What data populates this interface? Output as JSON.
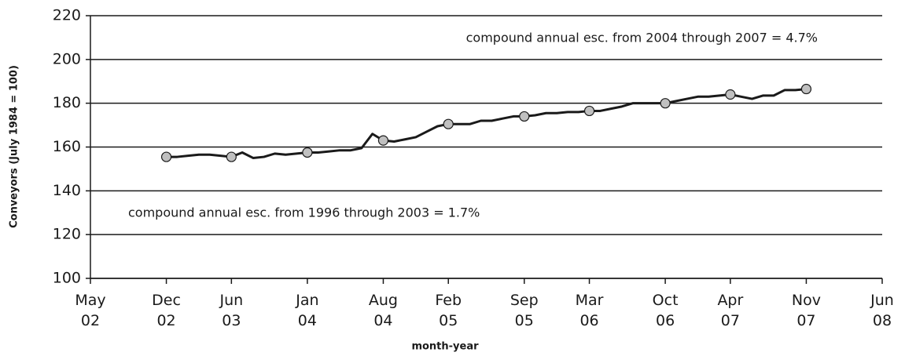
{
  "chart_data": {
    "type": "line",
    "ylabel": "Conveyors (July 1984 = 100)",
    "xlabel": "month-year",
    "annotations": [
      "compound annual esc. from 2004 through 2007 = 4.7%",
      "compound annual esc. from 1996 through 2003 = 1.7%"
    ],
    "x": [
      "2002-12",
      "2003-01",
      "2003-02",
      "2003-03",
      "2003-04",
      "2003-05",
      "2003-06",
      "2003-07",
      "2003-08",
      "2003-09",
      "2003-10",
      "2003-11",
      "2003-12",
      "2004-01",
      "2004-02",
      "2004-03",
      "2004-04",
      "2004-05",
      "2004-06",
      "2004-07",
      "2004-08",
      "2004-09",
      "2004-10",
      "2004-11",
      "2004-12",
      "2005-01",
      "2005-02",
      "2005-03",
      "2005-04",
      "2005-05",
      "2005-06",
      "2005-07",
      "2005-08",
      "2005-09",
      "2005-10",
      "2005-11",
      "2005-12",
      "2006-01",
      "2006-02",
      "2006-03",
      "2006-04",
      "2006-05",
      "2006-06",
      "2006-07",
      "2006-08",
      "2006-09",
      "2006-10",
      "2006-11",
      "2006-12",
      "2007-01",
      "2007-02",
      "2007-03",
      "2007-04",
      "2007-05",
      "2007-06",
      "2007-07",
      "2007-08",
      "2007-09",
      "2007-10",
      "2007-11"
    ],
    "values": [
      155.5,
      155.5,
      156,
      156.5,
      156.5,
      156,
      155.5,
      157.5,
      155,
      155.5,
      157,
      156.5,
      157,
      157.5,
      157.5,
      158,
      158.5,
      158.5,
      159.5,
      166,
      163,
      162.5,
      163.5,
      164.5,
      167,
      169.5,
      170.5,
      170.5,
      170.5,
      172,
      172,
      173,
      174,
      174,
      174.5,
      175.5,
      175.5,
      176,
      176,
      176.5,
      176.5,
      177.5,
      178.5,
      180,
      180,
      180,
      180,
      181,
      182,
      183,
      183,
      183.5,
      184,
      183,
      182,
      183.5,
      183.5,
      186,
      186,
      186.5
    ],
    "color": "#1a1a1a",
    "markers": {
      "color": "#c0c0c0",
      "x": [
        "2002-12",
        "2003-06",
        "2004-01",
        "2004-08",
        "2005-02",
        "2005-09",
        "2006-03",
        "2006-10",
        "2007-04",
        "2007-11"
      ],
      "values": [
        155.5,
        155.5,
        157.5,
        163,
        170.5,
        174,
        176.5,
        180,
        184,
        186.5
      ]
    },
    "xlim": [
      "2002-05",
      "2008-06"
    ],
    "xticks": [
      {
        "value": "2002-05",
        "label": "May 02"
      },
      {
        "value": "2002-12",
        "label": "Dec 02"
      },
      {
        "value": "2003-06",
        "label": "Jun 03"
      },
      {
        "value": "2004-01",
        "label": "Jan 04"
      },
      {
        "value": "2004-08",
        "label": "Aug 04"
      },
      {
        "value": "2005-02",
        "label": "Feb 05"
      },
      {
        "value": "2005-09",
        "label": "Sep 05"
      },
      {
        "value": "2006-03",
        "label": "Mar 06"
      },
      {
        "value": "2006-10",
        "label": "Oct 06"
      },
      {
        "value": "2007-04",
        "label": "Apr 07"
      },
      {
        "value": "2007-11",
        "label": "Nov 07"
      },
      {
        "value": "2008-06",
        "label": "Jun 08"
      }
    ],
    "ylim": [
      100,
      220
    ],
    "yticks": [
      100,
      120,
      140,
      160,
      180,
      200,
      220
    ],
    "grid": true
  }
}
